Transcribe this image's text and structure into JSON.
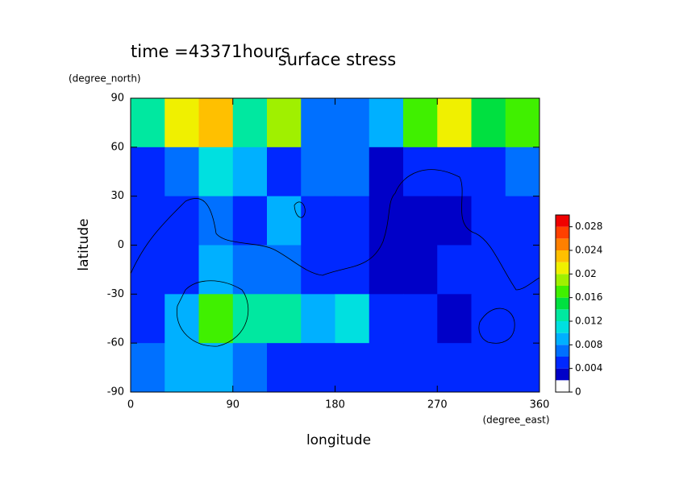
{
  "chart_data": {
    "type": "contour",
    "title": "surface stress",
    "subtitle": "time =43371hours",
    "x_label": "longitude",
    "x_units": "(degree_east)",
    "y_label": "latitude",
    "y_units": "(degree_north)",
    "x": [
      15,
      45,
      75,
      105,
      135,
      165,
      195,
      225,
      255,
      285,
      315,
      345
    ],
    "y": [
      75,
      45,
      15,
      -15,
      -45,
      -75
    ],
    "z": [
      [
        0.012,
        0.02,
        0.022,
        0.012,
        0.018,
        0.006,
        0.006,
        0.008,
        0.016,
        0.02,
        0.014,
        0.016
      ],
      [
        0.004,
        0.006,
        0.01,
        0.008,
        0.004,
        0.006,
        0.006,
        0.002,
        0.004,
        0.004,
        0.004,
        0.006
      ],
      [
        0.004,
        0.004,
        0.006,
        0.004,
        0.008,
        0.004,
        0.004,
        0.002,
        0.002,
        0.002,
        0.004,
        0.004
      ],
      [
        0.004,
        0.004,
        0.008,
        0.006,
        0.006,
        0.004,
        0.004,
        0.002,
        0.002,
        0.004,
        0.004,
        0.004
      ],
      [
        0.004,
        0.008,
        0.016,
        0.012,
        0.012,
        0.008,
        0.01,
        0.004,
        0.004,
        0.002,
        0.004,
        0.004
      ],
      [
        0.006,
        0.008,
        0.008,
        0.006,
        0.004,
        0.004,
        0.004,
        0.004,
        0.004,
        0.004,
        0.004,
        0.004
      ]
    ],
    "xlim": [
      0,
      360
    ],
    "xticks": [
      0,
      90,
      180,
      270,
      360
    ],
    "ylim": [
      -90,
      90
    ],
    "yticks": [
      -90,
      -60,
      -30,
      0,
      30,
      60,
      90
    ],
    "levels": [
      0,
      0.002,
      0.004,
      0.006,
      0.008,
      0.01,
      0.012,
      0.014,
      0.016,
      0.018,
      0.02,
      0.022,
      0.024,
      0.026,
      0.028,
      0.03
    ],
    "colors": [
      "#ffffff",
      "#0000c8",
      "#0028ff",
      "#0070ff",
      "#00b0ff",
      "#00e0e0",
      "#00e8a0",
      "#00e040",
      "#40f000",
      "#a0f000",
      "#f0f000",
      "#ffc000",
      "#ff8000",
      "#ff4000",
      "#f00000"
    ],
    "colorbar_ticks": [
      0,
      0.004,
      0.008,
      0.012,
      0.016,
      0.02,
      0.024,
      0.028
    ]
  }
}
